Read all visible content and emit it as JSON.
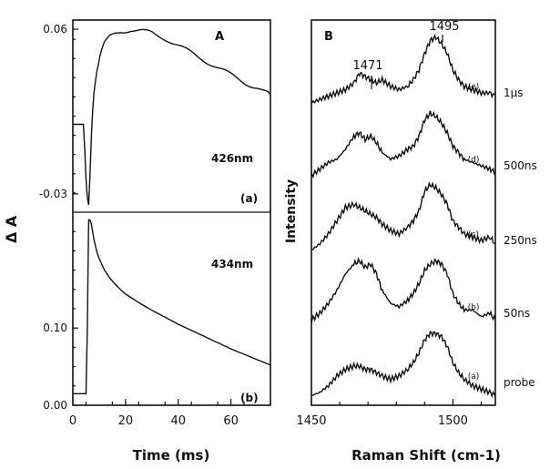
{
  "chart_data": [
    {
      "panel": "A",
      "type": "line",
      "ylabel": "Δ A",
      "xlabel": "Time  (ms)",
      "x_ticks": [
        0,
        20,
        40,
        60
      ],
      "xlim": [
        0,
        75
      ],
      "subplots": [
        {
          "tag": "(a)",
          "wavelength": "426nm",
          "ylim": [
            -0.04,
            0.065
          ],
          "y_ticks": [
            0.06,
            -0.03
          ],
          "y_tick_labels": [
            "0.06",
            "-0.03"
          ],
          "series": [
            {
              "x": [
                0,
                1,
                2,
                3,
                4,
                4.5,
                5,
                5.5,
                6,
                6.5,
                7,
                7.5,
                8,
                9,
                10,
                11,
                12,
                14,
                16,
                18,
                20,
                22,
                24,
                26,
                28,
                30,
                35,
                40,
                45,
                50,
                55,
                60,
                65,
                70,
                75
              ],
              "y": [
                0.008,
                0.008,
                0.008,
                0.008,
                0.008,
                -0.005,
                -0.022,
                -0.032,
                -0.036,
                -0.02,
                0.0,
                0.015,
                0.025,
                0.036,
                0.043,
                0.048,
                0.052,
                0.056,
                0.058,
                0.059,
                0.0592,
                0.0595,
                0.059,
                0.0588,
                0.0585,
                0.058,
                0.055,
                0.051,
                0.047,
                0.043,
                0.039,
                0.035,
                0.031,
                0.028,
                0.024
              ]
            }
          ]
        },
        {
          "tag": "(b)",
          "wavelength": "434nm",
          "ylim": [
            0,
            0.25
          ],
          "y_ticks": [
            0.1,
            0.0
          ],
          "y_tick_labels": [
            "0.10",
            "0.00"
          ],
          "series": [
            {
              "x": [
                0,
                1,
                2,
                3,
                4,
                5,
                5.5,
                6,
                6.5,
                7,
                7.5,
                8,
                9,
                10,
                12,
                14,
                16,
                18,
                20,
                25,
                30,
                35,
                40,
                45,
                50,
                55,
                60,
                65,
                70,
                75
              ],
              "y": [
                0.015,
                0.015,
                0.015,
                0.015,
                0.015,
                0.015,
                0.1,
                0.24,
                0.24,
                0.235,
                0.225,
                0.215,
                0.2,
                0.19,
                0.175,
                0.165,
                0.157,
                0.15,
                0.144,
                0.133,
                0.123,
                0.114,
                0.105,
                0.097,
                0.089,
                0.081,
                0.073,
                0.066,
                0.059,
                0.052
              ]
            }
          ]
        }
      ]
    },
    {
      "panel": "B",
      "type": "line",
      "xlabel": "Raman Shift  (cm-1)",
      "ylabel": "Intensity",
      "x_ticks": [
        1450,
        1500
      ],
      "xlim": [
        1450,
        1515
      ],
      "peak_labels": [
        "1471",
        "1495"
      ],
      "series": [
        {
          "name": "1μs",
          "tag": "(e)",
          "x": [
            1450,
            1453,
            1456,
            1459,
            1462,
            1465,
            1467,
            1469,
            1471,
            1473,
            1475,
            1478,
            1481,
            1484,
            1486,
            1488,
            1490,
            1492,
            1494,
            1496,
            1498,
            1500,
            1502,
            1504,
            1507,
            1510,
            1513,
            1515
          ],
          "y": [
            0.1,
            0.15,
            0.2,
            0.25,
            0.3,
            0.4,
            0.55,
            0.5,
            0.45,
            0.4,
            0.45,
            0.35,
            0.3,
            0.35,
            0.45,
            0.6,
            0.85,
            1.05,
            1.1,
            1.0,
            0.85,
            0.6,
            0.45,
            0.35,
            0.3,
            0.25,
            0.25,
            0.2
          ]
        },
        {
          "name": "500ns",
          "tag": "(d)",
          "x": [
            1450,
            1453,
            1456,
            1459,
            1462,
            1465,
            1467,
            1469,
            1471,
            1473,
            1475,
            1478,
            1481,
            1484,
            1486,
            1488,
            1490,
            1492,
            1494,
            1496,
            1498,
            1500,
            1502,
            1504,
            1507,
            1510,
            1513,
            1515
          ],
          "y": [
            0.1,
            0.2,
            0.3,
            0.35,
            0.5,
            0.7,
            0.75,
            0.65,
            0.7,
            0.6,
            0.45,
            0.35,
            0.4,
            0.5,
            0.55,
            0.7,
            0.95,
            1.05,
            1.0,
            0.9,
            0.75,
            0.55,
            0.45,
            0.35,
            0.3,
            0.25,
            0.2,
            0.15
          ]
        },
        {
          "name": "250ns",
          "tag": "(c)",
          "x": [
            1450,
            1453,
            1456,
            1459,
            1462,
            1465,
            1467,
            1469,
            1471,
            1473,
            1475,
            1478,
            1481,
            1484,
            1486,
            1488,
            1490,
            1492,
            1494,
            1496,
            1498,
            1500,
            1502,
            1504,
            1507,
            1510,
            1513,
            1515
          ],
          "y": [
            0.1,
            0.2,
            0.35,
            0.55,
            0.75,
            0.8,
            0.75,
            0.7,
            0.65,
            0.6,
            0.5,
            0.4,
            0.35,
            0.45,
            0.55,
            0.7,
            1.0,
            1.1,
            1.05,
            0.95,
            0.8,
            0.55,
            0.45,
            0.35,
            0.3,
            0.25,
            0.3,
            0.2
          ]
        },
        {
          "name": "50ns",
          "tag": "(b)",
          "x": [
            1450,
            1453,
            1456,
            1459,
            1462,
            1465,
            1467,
            1469,
            1471,
            1473,
            1475,
            1478,
            1481,
            1484,
            1486,
            1488,
            1490,
            1492,
            1494,
            1496,
            1498,
            1500,
            1502,
            1504,
            1507,
            1510,
            1513,
            1515
          ],
          "y": [
            0.15,
            0.25,
            0.4,
            0.6,
            0.85,
            1.0,
            1.05,
            0.95,
            1.0,
            0.85,
            0.6,
            0.4,
            0.35,
            0.45,
            0.55,
            0.7,
            0.9,
            1.0,
            1.05,
            1.0,
            0.85,
            0.55,
            0.4,
            0.3,
            0.3,
            0.2,
            0.25,
            0.15
          ]
        },
        {
          "name": "probe",
          "tag": "(a)",
          "x": [
            1450,
            1453,
            1456,
            1459,
            1462,
            1465,
            1467,
            1469,
            1471,
            1473,
            1475,
            1478,
            1481,
            1484,
            1486,
            1488,
            1490,
            1492,
            1494,
            1496,
            1498,
            1500,
            1502,
            1504,
            1507,
            1510,
            1513,
            1515
          ],
          "y": [
            0.05,
            0.1,
            0.2,
            0.35,
            0.45,
            0.5,
            0.5,
            0.45,
            0.45,
            0.4,
            0.35,
            0.3,
            0.35,
            0.45,
            0.55,
            0.7,
            0.9,
            1.0,
            1.0,
            0.95,
            0.8,
            0.55,
            0.4,
            0.3,
            0.2,
            0.15,
            0.1,
            0.05
          ]
        }
      ]
    }
  ]
}
